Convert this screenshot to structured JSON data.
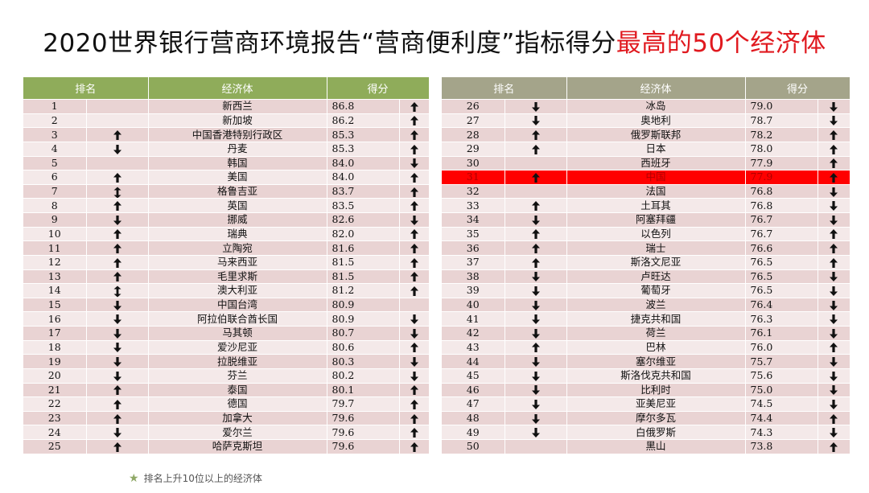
{
  "title": {
    "prefix": "2020世界银行营商环境报告“营商便利度”指标得分",
    "highlight": "最高的50个经济体"
  },
  "headers": {
    "rank": "排名",
    "economy": "经济体",
    "score": "得分"
  },
  "legend": {
    "star_icon": "star-icon",
    "text": "排名上升10位以上的经济体"
  },
  "highlight_row": 31,
  "tables": [
    {
      "rows": [
        {
          "rank": "1",
          "move": "",
          "economy": "新西兰",
          "score": "86.8",
          "trend": "up"
        },
        {
          "rank": "2",
          "move": "",
          "economy": "新加坡",
          "score": "86.2",
          "trend": "up"
        },
        {
          "rank": "3",
          "move": "up",
          "economy": "中国香港特别行政区",
          "score": "85.3",
          "trend": "up"
        },
        {
          "rank": "4",
          "move": "down",
          "economy": "丹麦",
          "score": "85.3",
          "trend": "up"
        },
        {
          "rank": "5",
          "move": "",
          "economy": "韩国",
          "score": "84.0",
          "trend": "down"
        },
        {
          "rank": "6",
          "move": "up",
          "economy": "美国",
          "score": "84.0",
          "trend": "up"
        },
        {
          "rank": "7",
          "move": "updown",
          "economy": "格鲁吉亚",
          "score": "83.7",
          "trend": "up"
        },
        {
          "rank": "8",
          "move": "up",
          "economy": "英国",
          "score": "83.5",
          "trend": "up"
        },
        {
          "rank": "9",
          "move": "down",
          "economy": "挪威",
          "score": "82.6",
          "trend": "down"
        },
        {
          "rank": "10",
          "move": "up",
          "economy": "瑞典",
          "score": "82.0",
          "trend": "up"
        },
        {
          "rank": "11",
          "move": "up",
          "economy": "立陶宛",
          "score": "81.6",
          "trend": "up"
        },
        {
          "rank": "12",
          "move": "up",
          "economy": "马来西亚",
          "score": "81.5",
          "trend": "up"
        },
        {
          "rank": "13",
          "move": "up",
          "economy": "毛里求斯",
          "score": "81.5",
          "trend": "up"
        },
        {
          "rank": "14",
          "move": "updown",
          "economy": "澳大利亚",
          "score": "81.2",
          "trend": "up"
        },
        {
          "rank": "15",
          "move": "down",
          "economy": "中国台湾",
          "score": "80.9",
          "trend": ""
        },
        {
          "rank": "16",
          "move": "down",
          "economy": "阿拉伯联合酋长国",
          "score": "80.9",
          "trend": "down"
        },
        {
          "rank": "17",
          "move": "down",
          "economy": "马其顿",
          "score": "80.7",
          "trend": "down"
        },
        {
          "rank": "18",
          "move": "down",
          "economy": "爱沙尼亚",
          "score": "80.6",
          "trend": "up"
        },
        {
          "rank": "19",
          "move": "down",
          "economy": "拉脱维亚",
          "score": "80.3",
          "trend": "down"
        },
        {
          "rank": "20",
          "move": "down",
          "economy": "芬兰",
          "score": "80.2",
          "trend": "down"
        },
        {
          "rank": "21",
          "move": "up",
          "economy": "泰国",
          "score": "80.1",
          "trend": "up"
        },
        {
          "rank": "22",
          "move": "up",
          "economy": "德国",
          "score": "79.7",
          "trend": "up"
        },
        {
          "rank": "23",
          "move": "up",
          "economy": "加拿大",
          "score": "79.6",
          "trend": "up"
        },
        {
          "rank": "24",
          "move": "down",
          "economy": "爱尔兰",
          "score": "79.6",
          "trend": "up"
        },
        {
          "rank": "25",
          "move": "up",
          "economy": "哈萨克斯坦",
          "score": "79.6",
          "trend": "up"
        }
      ]
    },
    {
      "rows": [
        {
          "rank": "26",
          "move": "down",
          "economy": "冰岛",
          "score": "79.0",
          "trend": "down"
        },
        {
          "rank": "27",
          "move": "down",
          "economy": "奥地利",
          "score": "78.7",
          "trend": "down"
        },
        {
          "rank": "28",
          "move": "up",
          "economy": "俄罗斯联邦",
          "score": "78.2",
          "trend": "up"
        },
        {
          "rank": "29",
          "move": "up",
          "economy": "日本",
          "score": "78.0",
          "trend": "up"
        },
        {
          "rank": "30",
          "move": "",
          "economy": "西班牙",
          "score": "77.9",
          "trend": "up"
        },
        {
          "rank": "31",
          "move": "up",
          "economy": "中国",
          "score": "77.9",
          "trend": "up"
        },
        {
          "rank": "32",
          "move": "",
          "economy": "法国",
          "score": "76.8",
          "trend": "down"
        },
        {
          "rank": "33",
          "move": "up",
          "economy": "土耳其",
          "score": "76.8",
          "trend": "down"
        },
        {
          "rank": "34",
          "move": "down",
          "economy": "阿塞拜疆",
          "score": "76.7",
          "trend": "down"
        },
        {
          "rank": "35",
          "move": "up",
          "economy": "以色列",
          "score": "76.7",
          "trend": "up"
        },
        {
          "rank": "36",
          "move": "up",
          "economy": "瑞士",
          "score": "76.6",
          "trend": "up"
        },
        {
          "rank": "37",
          "move": "up",
          "economy": "斯洛文尼亚",
          "score": "76.5",
          "trend": "up"
        },
        {
          "rank": "38",
          "move": "down",
          "economy": "卢旺达",
          "score": "76.5",
          "trend": "down"
        },
        {
          "rank": "39",
          "move": "down",
          "economy": "葡萄牙",
          "score": "76.5",
          "trend": "down"
        },
        {
          "rank": "40",
          "move": "down",
          "economy": "波兰",
          "score": "76.4",
          "trend": "down"
        },
        {
          "rank": "41",
          "move": "down",
          "economy": "捷克共和国",
          "score": "76.3",
          "trend": "down"
        },
        {
          "rank": "42",
          "move": "down",
          "economy": "荷兰",
          "score": "76.1",
          "trend": "down"
        },
        {
          "rank": "43",
          "move": "up",
          "economy": "巴林",
          "score": "76.0",
          "trend": "up"
        },
        {
          "rank": "44",
          "move": "down",
          "economy": "塞尔维亚",
          "score": "75.7",
          "trend": "down"
        },
        {
          "rank": "45",
          "move": "down",
          "economy": "斯洛伐克共和国",
          "score": "75.6",
          "trend": "down"
        },
        {
          "rank": "46",
          "move": "down",
          "economy": "比利时",
          "score": "75.0",
          "trend": "down"
        },
        {
          "rank": "47",
          "move": "down",
          "economy": "亚美尼亚",
          "score": "74.5",
          "trend": "down"
        },
        {
          "rank": "48",
          "move": "down",
          "economy": "摩尔多瓦",
          "score": "74.4",
          "trend": "up"
        },
        {
          "rank": "49",
          "move": "down",
          "economy": "白俄罗斯",
          "score": "74.3",
          "trend": "down"
        },
        {
          "rank": "50",
          "move": "",
          "economy": "黑山",
          "score": "73.8",
          "trend": "up"
        }
      ]
    }
  ]
}
